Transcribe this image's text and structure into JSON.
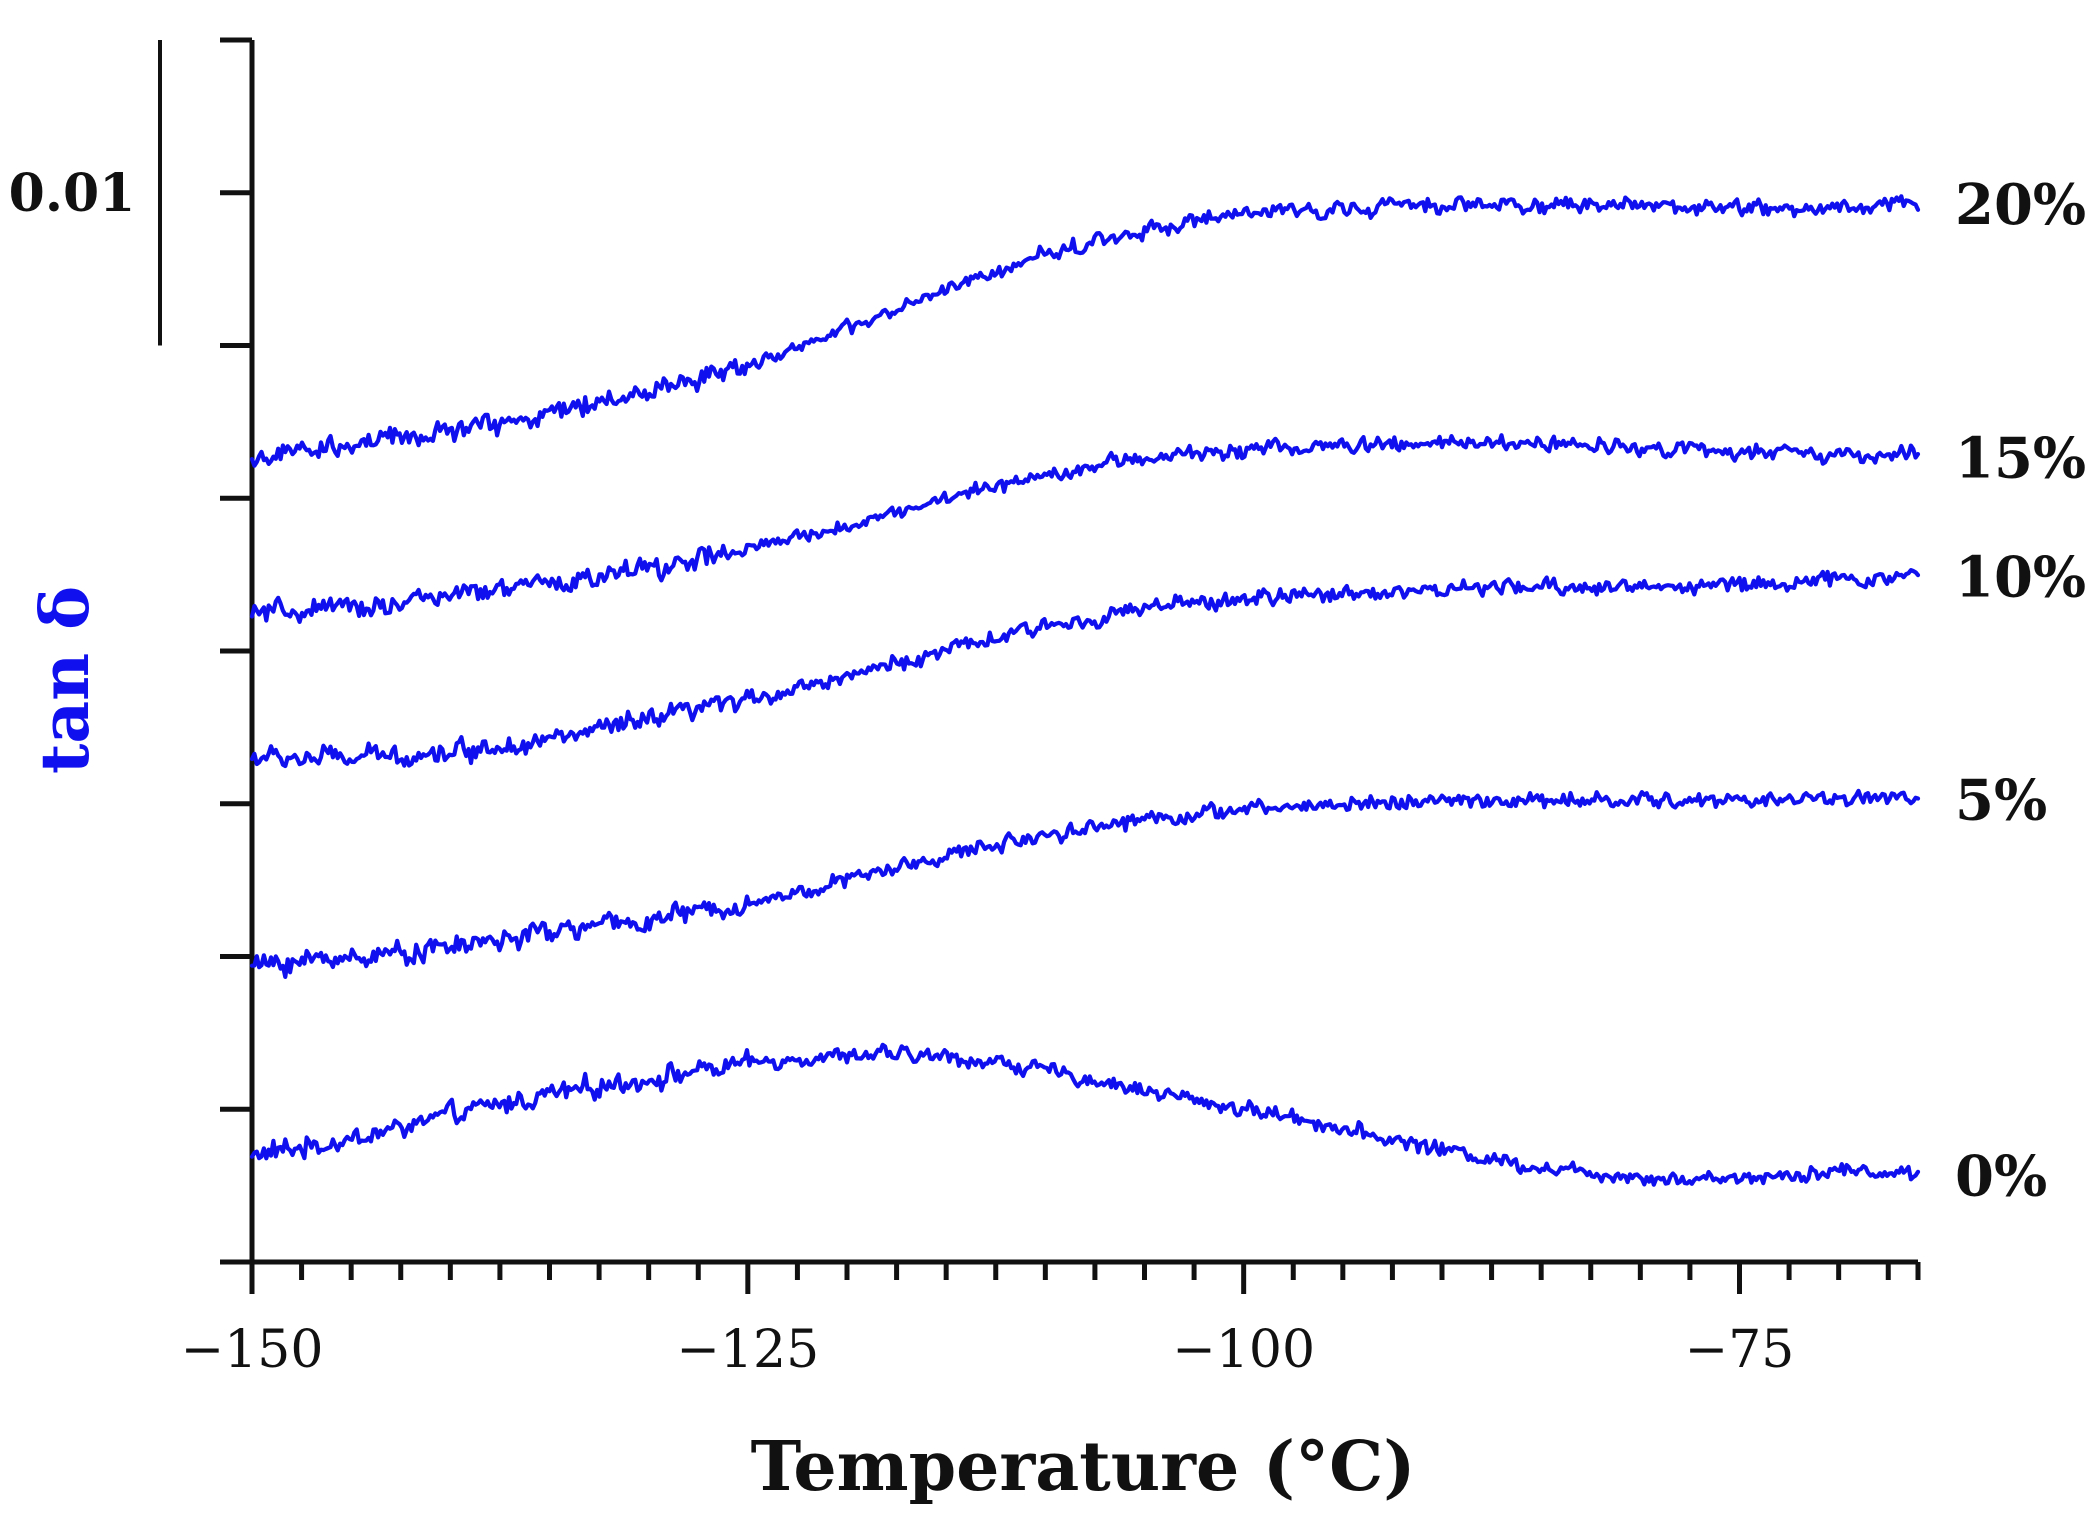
{
  "chart_data": {
    "type": "line",
    "title": "",
    "xlabel": "Temperature (°C)",
    "ylabel": "tan δ",
    "xlim": [
      -150,
      -66
    ],
    "xticks": [
      -150,
      -125,
      -100,
      -75
    ],
    "xtick_labels": [
      "−150",
      "−125",
      "−100",
      "−75"
    ],
    "x_minor_step": 2.5,
    "ylim": [
      0,
      0.04
    ],
    "y_ticks": [
      0,
      0.005,
      0.01,
      0.015,
      0.02,
      0.025,
      0.03,
      0.035,
      0.04
    ],
    "y_tick_labels_shown": false,
    "scale_bar": {
      "label": "0.01",
      "value": 0.01
    },
    "line_color": "#1010ee",
    "grid": false,
    "noise_amplitude": 0.0004,
    "series": [
      {
        "name": "0%",
        "label": "0%",
        "x": [
          -150,
          -145,
          -140,
          -135,
          -130,
          -125,
          -122,
          -118,
          -115,
          -112,
          -108,
          -104,
          -100,
          -97,
          -94,
          -90,
          -86,
          -82,
          -78,
          -74,
          -70,
          -66
        ],
        "values": [
          0.0035,
          0.004,
          0.0048,
          0.0055,
          0.006,
          0.0065,
          0.0067,
          0.0068,
          0.0067,
          0.0065,
          0.006,
          0.0055,
          0.005,
          0.0047,
          0.0042,
          0.0037,
          0.0032,
          0.0029,
          0.0027,
          0.0028,
          0.003,
          0.0029
        ]
      },
      {
        "name": "5%",
        "label": "5%",
        "x": [
          -150,
          -145,
          -140,
          -135,
          -130,
          -125,
          -120,
          -115,
          -110,
          -105,
          -100,
          -95,
          -90,
          -85,
          -80,
          -75,
          -70,
          -66
        ],
        "values": [
          0.0097,
          0.01,
          0.0103,
          0.0108,
          0.0112,
          0.0117,
          0.0125,
          0.0133,
          0.014,
          0.0145,
          0.0148,
          0.015,
          0.0151,
          0.0151,
          0.0151,
          0.0151,
          0.0152,
          0.0152
        ]
      },
      {
        "name": "10%",
        "label": "10%",
        "x": [
          -150,
          -145,
          -140,
          -135,
          -130,
          -125,
          -120,
          -115,
          -110,
          -105,
          -100,
          -95,
          -90,
          -85,
          -80,
          -75,
          -70,
          -66
        ],
        "values": [
          0.0165,
          0.0165,
          0.0167,
          0.0171,
          0.0177,
          0.0184,
          0.0192,
          0.02,
          0.0208,
          0.0214,
          0.0217,
          0.0219,
          0.022,
          0.0221,
          0.0221,
          0.0222,
          0.0223,
          0.0225
        ]
      },
      {
        "name": "15%",
        "label": "15%",
        "x": [
          -150,
          -145,
          -140,
          -135,
          -130,
          -125,
          -120,
          -115,
          -110,
          -105,
          -100,
          -95,
          -90,
          -85,
          -80,
          -75,
          -70,
          -66
        ],
        "values": [
          0.0212,
          0.0214,
          0.0218,
          0.0222,
          0.0227,
          0.0233,
          0.0241,
          0.025,
          0.0258,
          0.0263,
          0.0266,
          0.0267,
          0.0268,
          0.0268,
          0.0267,
          0.0265,
          0.0264,
          0.0264
        ]
      },
      {
        "name": "20%",
        "label": "20%",
        "x": [
          -150,
          -145,
          -140,
          -135,
          -130,
          -125,
          -120,
          -115,
          -110,
          -105,
          -100,
          -95,
          -90,
          -85,
          -80,
          -75,
          -70,
          -66
        ],
        "values": [
          0.0263,
          0.0267,
          0.0272,
          0.0278,
          0.0285,
          0.0294,
          0.0305,
          0.0318,
          0.033,
          0.0338,
          0.0343,
          0.0345,
          0.0346,
          0.0346,
          0.0346,
          0.0345,
          0.0345,
          0.0347
        ]
      }
    ]
  }
}
